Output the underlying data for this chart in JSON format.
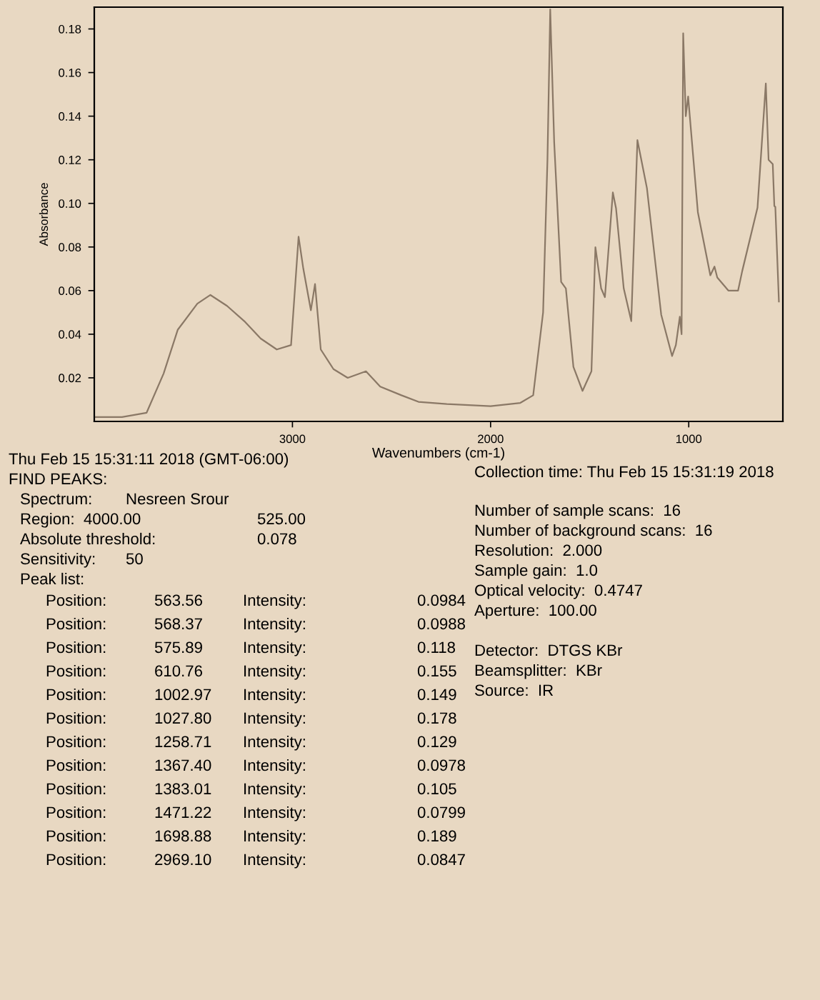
{
  "chart_data": {
    "type": "line",
    "xlabel": "Wavenumbers (cm-1)",
    "ylabel": "Absorbance",
    "xlim": [
      4000,
      525
    ],
    "ylim": [
      0,
      0.19
    ],
    "xticks": [
      3000,
      2000,
      1000
    ],
    "yticks": [
      0.02,
      0.04,
      0.06,
      0.08,
      {
        "value": 0.1,
        "label": "0.10"
      },
      0.12,
      0.14,
      0.16,
      0.18
    ],
    "grid": false,
    "legend": false,
    "marker": "none",
    "line_style": "solid",
    "series": [
      {
        "color": "#8a7866",
        "x": [
          4000,
          3860,
          3736,
          3650,
          3579,
          3480,
          3414,
          3330,
          3243,
          3160,
          3079,
          3007,
          2969,
          2945,
          2907,
          2886,
          2857,
          2793,
          2721,
          2629,
          2557,
          2450,
          2364,
          2221,
          2000,
          1850,
          1785,
          1735,
          1713,
          1699,
          1679,
          1644,
          1620,
          1582,
          1536,
          1491,
          1471,
          1442,
          1423,
          1383,
          1367,
          1328,
          1290,
          1259,
          1211,
          1139,
          1084,
          1065,
          1045,
          1036,
          1028,
          1015,
          1003,
          954,
          891,
          870,
          856,
          800,
          751,
          730,
          653,
          611,
          597,
          576,
          568,
          563,
          545
        ],
        "values": [
          0.002,
          0.002,
          0.004,
          0.022,
          0.042,
          0.054,
          0.058,
          0.053,
          0.046,
          0.038,
          0.033,
          0.035,
          0.0847,
          0.07,
          0.051,
          0.063,
          0.033,
          0.024,
          0.02,
          0.023,
          0.016,
          0.012,
          0.009,
          0.008,
          0.007,
          0.0085,
          0.012,
          0.05,
          0.12,
          0.189,
          0.128,
          0.064,
          0.061,
          0.025,
          0.014,
          0.023,
          0.0799,
          0.061,
          0.057,
          0.105,
          0.0978,
          0.061,
          0.046,
          0.129,
          0.107,
          0.049,
          0.03,
          0.035,
          0.048,
          0.04,
          0.178,
          0.14,
          0.149,
          0.096,
          0.067,
          0.071,
          0.066,
          0.06,
          0.06,
          0.069,
          0.098,
          0.155,
          0.12,
          0.118,
          0.0988,
          0.0984,
          0.055
        ]
      }
    ],
    "annotations": [
      "Thu Feb 15 15:31:11 2018 (GMT-06:00)",
      "FIND PEAKS:",
      "Spectrum:\tNesreen Srour",
      "Region:  4000.00\t525.00",
      "Absolute threshold:\t0.078",
      "Sensitivity:\t50",
      "Peak list:",
      "Position:\t563.56\tIntensity:\t0.0984",
      "Position:\t568.37\tIntensity:\t0.0988",
      "Position:\t575.89\tIntensity:\t0.118",
      "Position:\t610.76\tIntensity:\t0.155",
      "Position:\t1002.97\tIntensity:\t0.149",
      "Position:\t1027.80\tIntensity:\t0.178",
      "Position:\t1258.71\tIntensity:\t0.129",
      "Position:\t1367.40\tIntensity:\t0.0978",
      "Position:\t1383.01\tIntensity:\t0.105",
      "Position:\t1471.22\tIntensity:\t0.0799",
      "Position:\t1698.88\tIntensity:\t0.189",
      "Position:\t2969.10\tIntensity:\t0.0847",
      "Collection time: Thu Feb 15 15:31:19 2018",
      "Number of sample scans:  16",
      "Number of background scans:  16",
      "Resolution:  2.000",
      "Sample gain:  1.0",
      "Optical velocity:  0.4747",
      "Aperture:  100.00",
      "Detector:  DTGS KBr",
      "Beamsplitter:  KBr",
      "Source:  IR"
    ]
  }
}
